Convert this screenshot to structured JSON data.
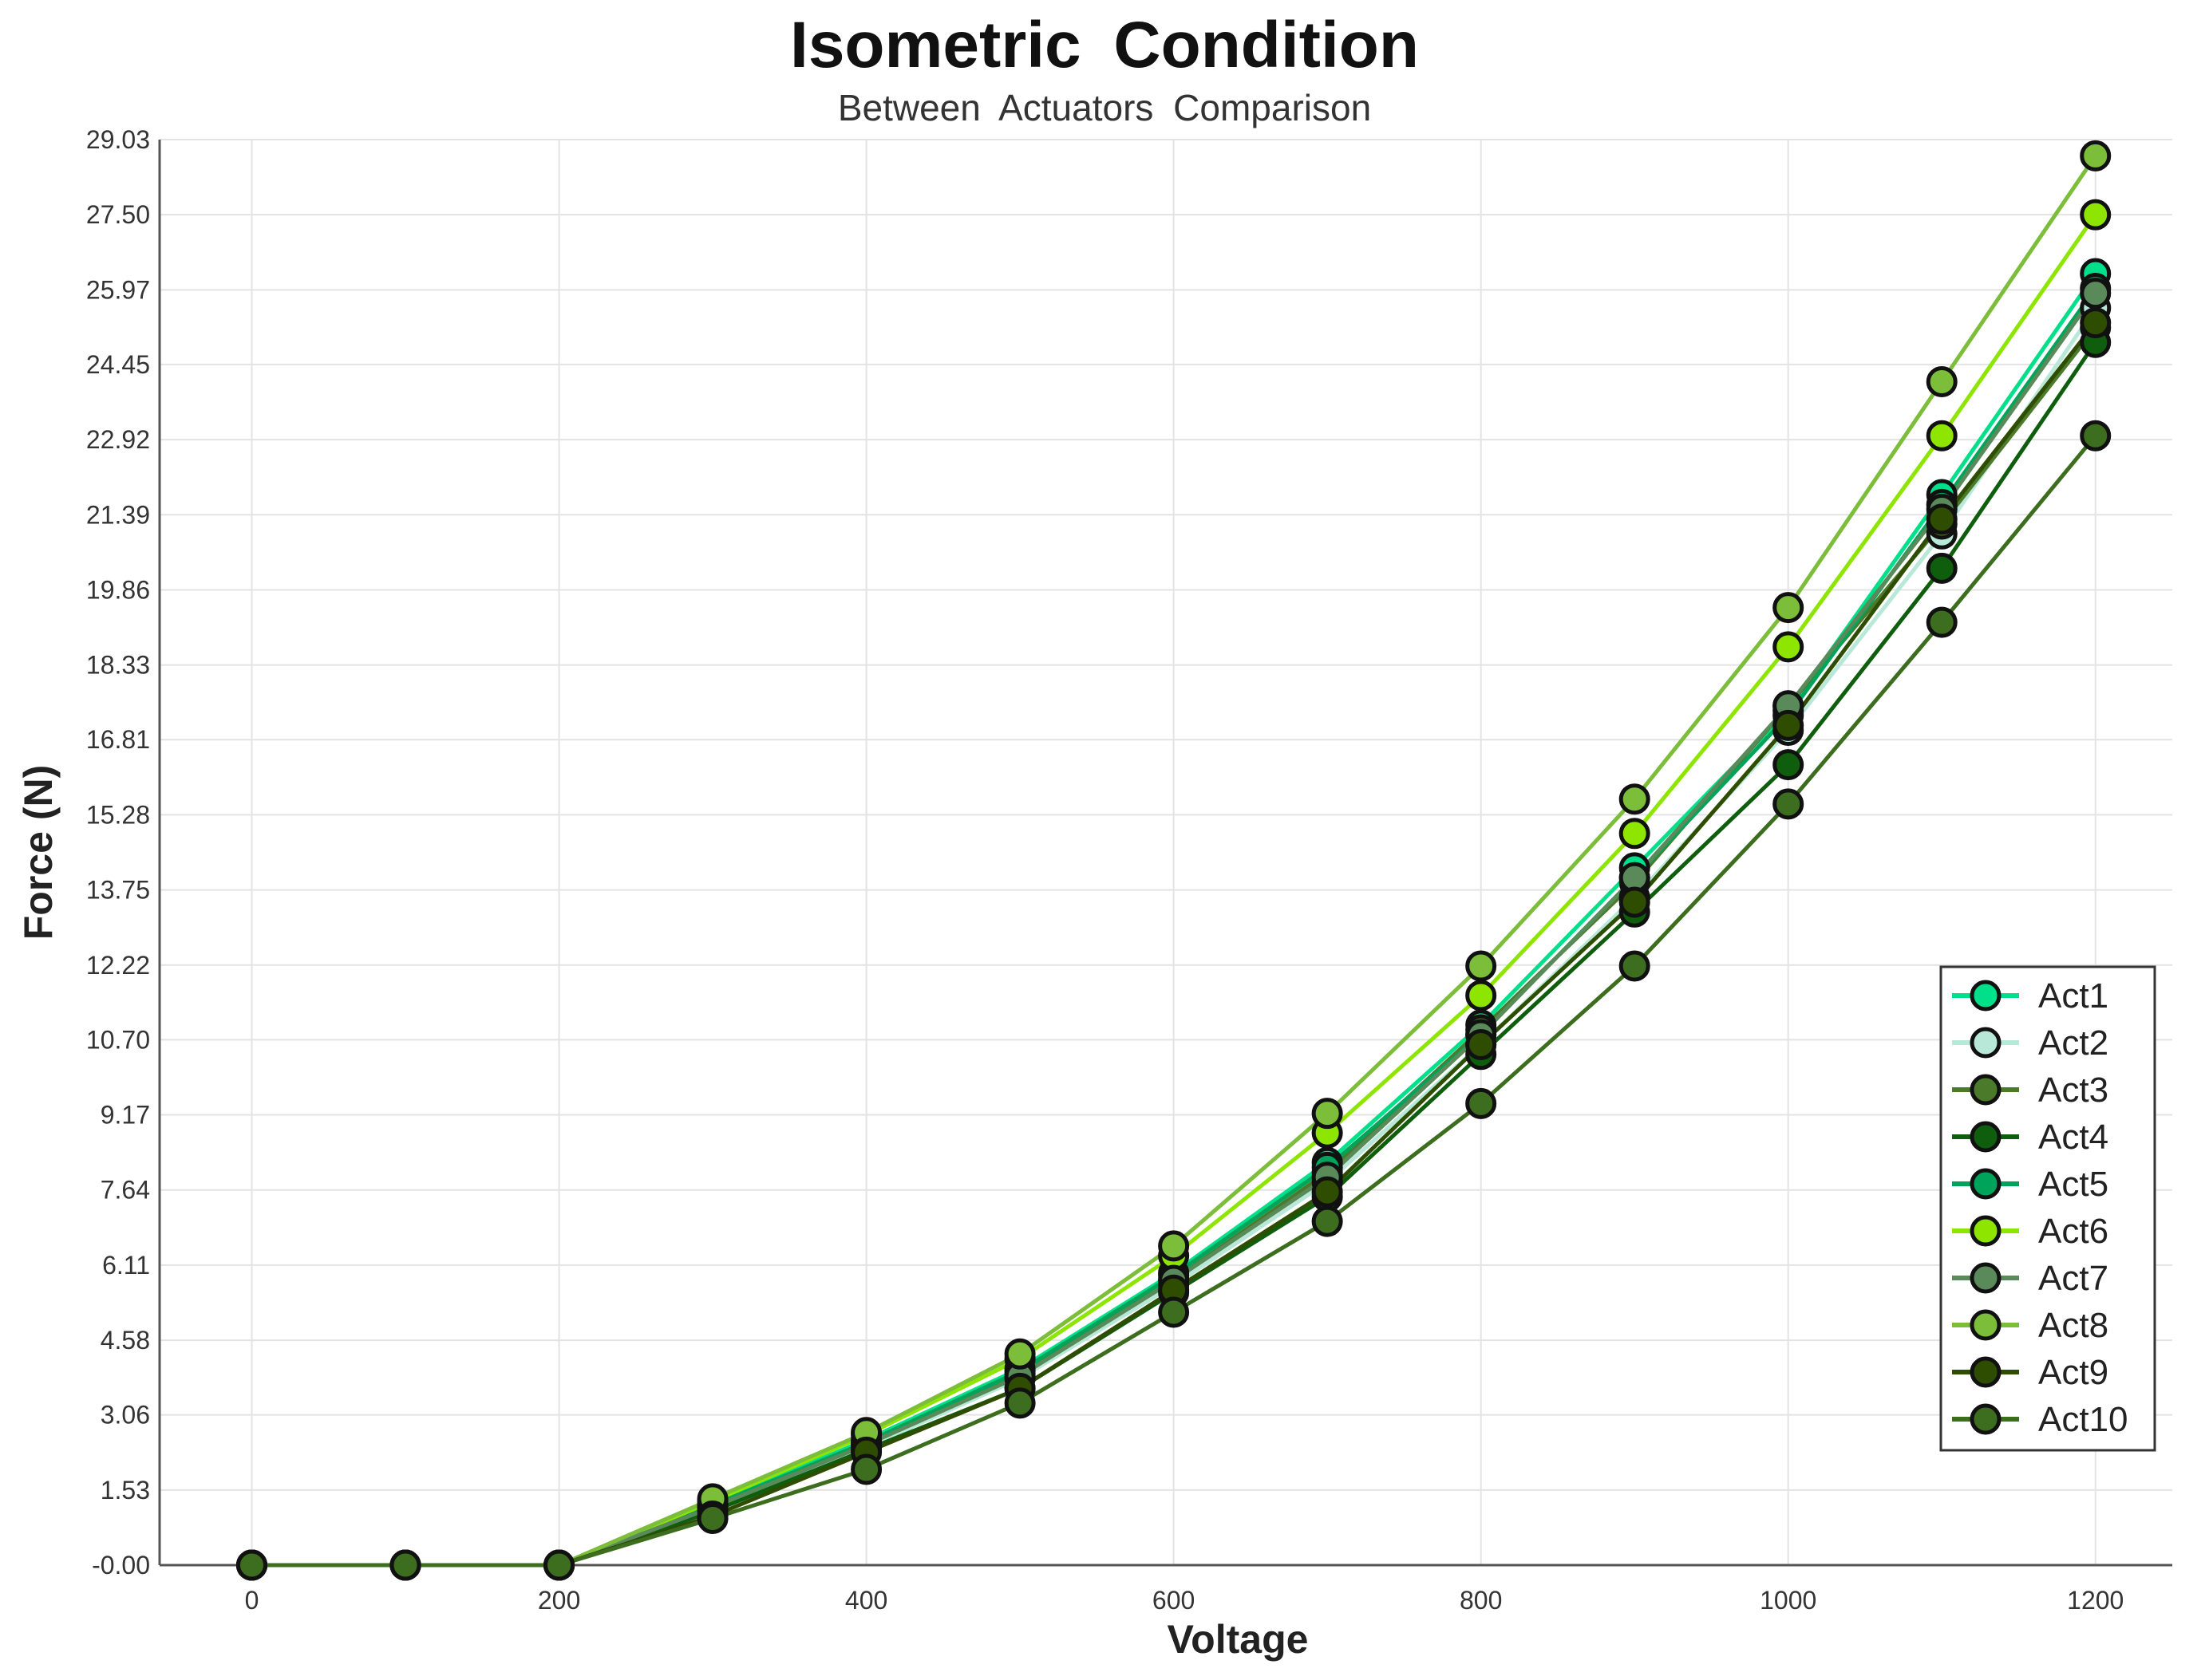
{
  "chart_data": {
    "type": "line",
    "title": "Isometric  Condition",
    "subtitle": "Between  Actuators  Comparison",
    "xlabel": "Voltage",
    "ylabel": "Force (N)",
    "xlim": [
      -60,
      1250
    ],
    "ylim": [
      0,
      29.03
    ],
    "xticks": [
      0,
      200,
      400,
      600,
      800,
      1000,
      1200
    ],
    "xtick_labels": [
      "0",
      "200",
      "400",
      "600",
      "800",
      "1000",
      "1200"
    ],
    "yticks": [
      0,
      1.53,
      3.06,
      4.58,
      6.11,
      7.64,
      9.17,
      10.7,
      12.22,
      13.75,
      15.28,
      16.81,
      18.33,
      19.86,
      21.39,
      22.92,
      24.45,
      25.97,
      27.5,
      29.03
    ],
    "ytick_labels": [
      "-0.00",
      "1.53",
      "3.06",
      "4.58",
      "6.11",
      "7.64",
      "9.17",
      "10.70",
      "12.22",
      "13.75",
      "15.28",
      "16.81",
      "18.33",
      "19.86",
      "21.39",
      "22.92",
      "24.45",
      "25.97",
      "27.50",
      "29.03"
    ],
    "grid": true,
    "legend_position": "right",
    "x": [
      0,
      100,
      200,
      300,
      400,
      500,
      600,
      700,
      800,
      900,
      1000,
      1100,
      1200
    ],
    "series": [
      {
        "name": "Act1",
        "color": "#00e08a",
        "values": [
          0,
          0,
          0,
          1.25,
          2.55,
          4.0,
          5.95,
          8.2,
          11.0,
          14.2,
          17.4,
          21.8,
          26.3
        ]
      },
      {
        "name": "Act2",
        "color": "#b8e8d8",
        "values": [
          0,
          0,
          0,
          1.15,
          2.4,
          3.8,
          5.7,
          7.8,
          10.6,
          13.6,
          17.0,
          21.0,
          25.6
        ]
      },
      {
        "name": "Act3",
        "color": "#4a7a2a",
        "values": [
          0,
          0,
          0,
          1.2,
          2.45,
          3.9,
          5.8,
          8.0,
          10.9,
          13.9,
          17.5,
          21.2,
          25.2
        ]
      },
      {
        "name": "Act4",
        "color": "#0e5e0e",
        "values": [
          0,
          0,
          0,
          1.1,
          2.35,
          3.6,
          5.55,
          7.5,
          10.4,
          13.3,
          16.3,
          20.3,
          24.9
        ]
      },
      {
        "name": "Act5",
        "color": "#00a35a",
        "values": [
          0,
          0,
          0,
          1.22,
          2.5,
          3.95,
          5.9,
          8.1,
          10.8,
          14.0,
          17.3,
          21.6,
          26.0
        ]
      },
      {
        "name": "Act6",
        "color": "#8ee600",
        "values": [
          0,
          0,
          0,
          1.3,
          2.65,
          4.2,
          6.3,
          8.8,
          11.6,
          14.9,
          18.7,
          23.0,
          27.5
        ]
      },
      {
        "name": "Act7",
        "color": "#5a8a5a",
        "values": [
          0,
          0,
          0,
          1.18,
          2.45,
          3.85,
          5.8,
          7.9,
          10.8,
          14.0,
          17.5,
          21.5,
          25.9
        ]
      },
      {
        "name": "Act8",
        "color": "#7cbd3a",
        "values": [
          0,
          0,
          0,
          1.35,
          2.7,
          4.3,
          6.5,
          9.2,
          12.2,
          15.6,
          19.5,
          24.1,
          28.7
        ]
      },
      {
        "name": "Act9",
        "color": "#2e4d00",
        "values": [
          0,
          0,
          0,
          1.0,
          2.3,
          3.6,
          5.6,
          7.6,
          10.6,
          13.5,
          17.1,
          21.3,
          25.3
        ]
      },
      {
        "name": "Act10",
        "color": "#3d6e1f",
        "values": [
          0,
          0,
          0,
          0.95,
          1.95,
          3.3,
          5.15,
          7.0,
          9.4,
          12.2,
          15.5,
          19.2,
          23.0
        ]
      }
    ]
  }
}
